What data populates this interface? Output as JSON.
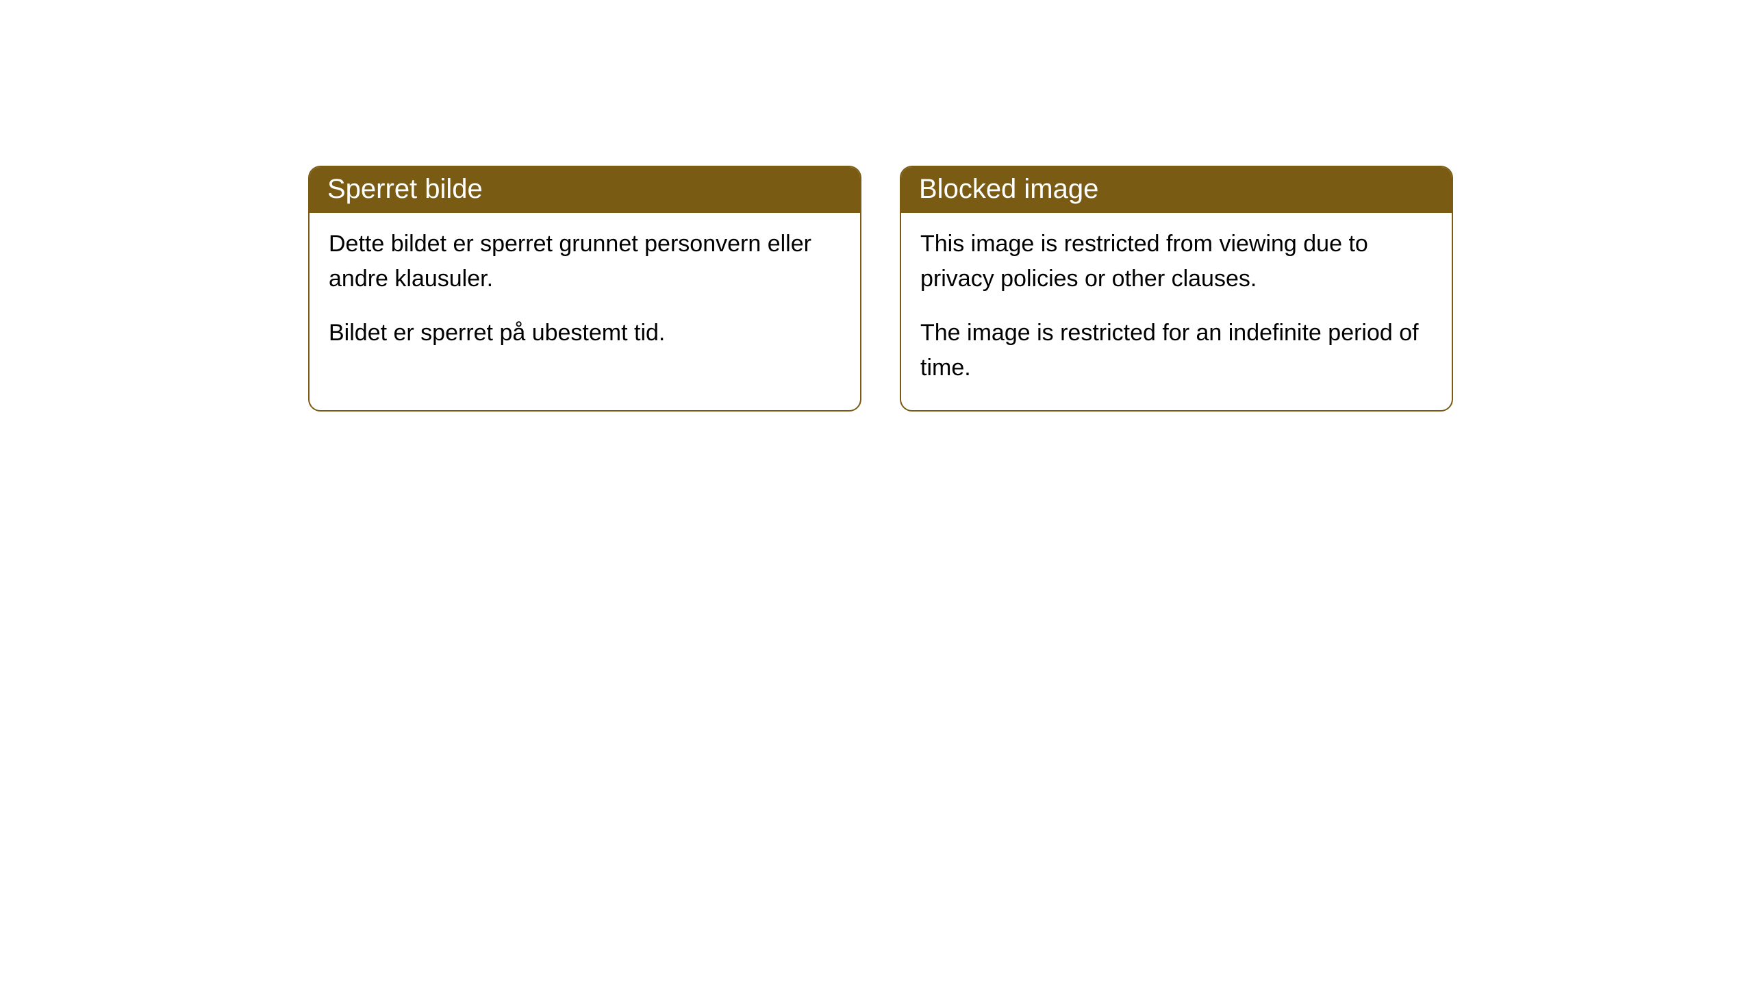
{
  "card_left": {
    "title": "Sperret bilde",
    "paragraph1": "Dette bildet er sperret grunnet personvern eller andre klausuler.",
    "paragraph2": "Bildet er sperret på ubestemt tid."
  },
  "card_right": {
    "title": "Blocked image",
    "paragraph1": "This image is restricted from viewing due to privacy policies or other clauses.",
    "paragraph2": "The image is restricted for an indefinite period of time."
  },
  "styling": {
    "accent_color": "#7a5b14",
    "background_color": "#ffffff",
    "card_border_radius": 18,
    "title_fontsize": 40,
    "body_fontsize": 34,
    "title_color": "#ffffff",
    "body_color": "#000000"
  }
}
